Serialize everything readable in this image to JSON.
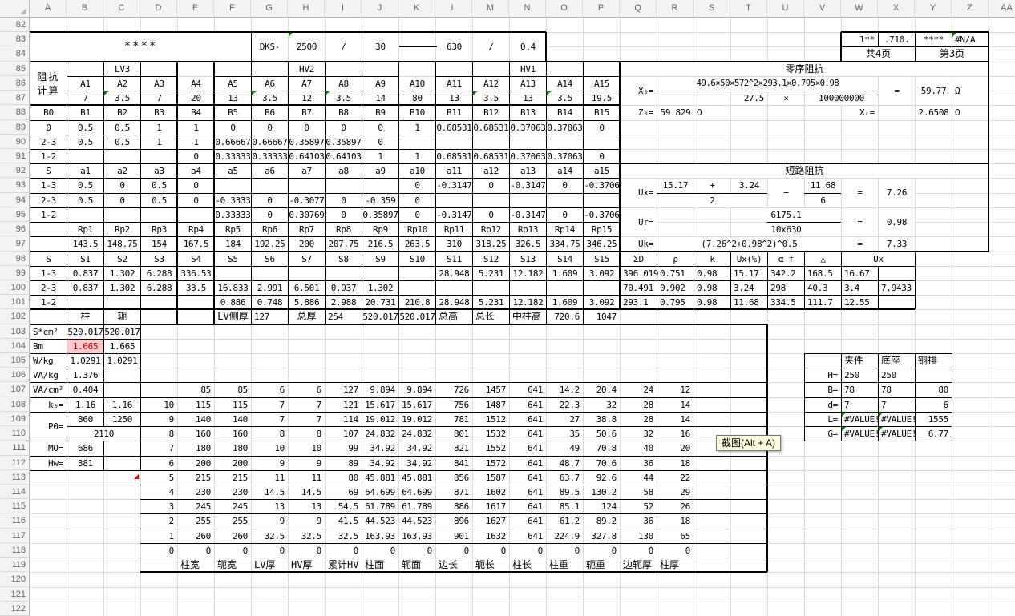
{
  "chrome": {
    "columns": [
      "A",
      "B",
      "C",
      "D",
      "E",
      "F",
      "G",
      "H",
      "I",
      "J",
      "K",
      "L",
      "M",
      "N",
      "O",
      "P",
      "Q",
      "R",
      "S",
      "T",
      "U",
      "V",
      "W",
      "X",
      "Y",
      "Z",
      "AA"
    ],
    "row_first": 82,
    "row_last": 123
  },
  "colors": {
    "gridline": "#dadada",
    "table_border": "#000000",
    "header_bg": "#f3f3f4",
    "header_text": "#5f6368",
    "warn_bg": "#ffc9ce",
    "warn_text": "#c00000",
    "comment_green": "#008000",
    "comment_red": "#d00000",
    "tooltip_bg": "#fffee1"
  },
  "tooltip": {
    "text": "截图(Alt + A)"
  },
  "markers": [
    {
      "r": 83,
      "c": "H",
      "type": "green"
    },
    {
      "r": 83,
      "c": "Z",
      "type": "green"
    },
    {
      "r": 87,
      "c": "C",
      "type": "green"
    },
    {
      "r": 87,
      "c": "G",
      "type": "green"
    },
    {
      "r": 87,
      "c": "I",
      "type": "green"
    },
    {
      "r": 87,
      "c": "M",
      "type": "green"
    },
    {
      "r": 87,
      "c": "O",
      "type": "green"
    },
    {
      "r": 109,
      "c": "W",
      "type": "green"
    },
    {
      "r": 109,
      "c": "X",
      "type": "green"
    },
    {
      "r": 110,
      "c": "W",
      "type": "green"
    },
    {
      "r": 110,
      "c": "X",
      "type": "green"
    },
    {
      "r": 113,
      "c": "C",
      "type": "red"
    }
  ],
  "cells": [
    {
      "r": 83,
      "c": "A",
      "cs": 6,
      "rs": 2,
      "t": "****",
      "k": "lg"
    },
    {
      "r": 83,
      "c": "G",
      "rs": 2,
      "t": "DKS-"
    },
    {
      "r": 83,
      "c": "H",
      "rs": 2,
      "t": "2500"
    },
    {
      "r": 83,
      "c": "I",
      "rs": 2,
      "t": "/"
    },
    {
      "r": 83,
      "c": "J",
      "rs": 2,
      "t": "30"
    },
    {
      "r": 83,
      "c": "L",
      "rs": 2,
      "t": "630"
    },
    {
      "r": 83,
      "c": "M",
      "rs": 2,
      "t": "/"
    },
    {
      "r": 83,
      "c": "N",
      "rs": 2,
      "t": "0.4"
    },
    {
      "r": 83,
      "c": "W",
      "t": "1**",
      "a": "r"
    },
    {
      "r": 83,
      "c": "X",
      "t": ".710."
    },
    {
      "r": 83,
      "c": "Y",
      "t": "****"
    },
    {
      "r": 83,
      "c": "Z",
      "t": "#N/A",
      "a": "l"
    },
    {
      "r": 84,
      "c": "W",
      "cs": 2,
      "t": "共4页",
      "k": "cjk"
    },
    {
      "r": 84,
      "c": "Y",
      "cs": 2,
      "t": "第3页",
      "k": "cjk"
    },
    {
      "r": 85,
      "c": "A",
      "rs": 3,
      "t": "阻抗\n计算",
      "k": "cjk2"
    },
    {
      "r": 85,
      "c": "B",
      "cs": 3,
      "t": "LV3"
    },
    {
      "r": 85,
      "c": "F",
      "cs": 5,
      "t": "HV2"
    },
    {
      "r": 85,
      "c": "L",
      "cs": 5,
      "t": "HV1"
    },
    {
      "r": 85,
      "c": "Q",
      "cs": 10,
      "t": "零序阻抗",
      "k": "cjk"
    },
    {
      "r": 86,
      "c": "B",
      "seq": [
        "A1",
        "A2",
        "A3",
        "A4",
        "A5",
        "A6",
        "A7",
        "A8",
        "A9",
        "A10",
        "A11",
        "A12",
        "A13",
        "A14",
        "A15"
      ]
    },
    {
      "r": 86,
      "c": "Q",
      "rs": 2,
      "t": "X₀=",
      "a": "r"
    },
    {
      "r": 86,
      "c": "R",
      "cs": 6,
      "t": "49.6×50×572^2×293.1×0.795×0.98",
      "k": "sm"
    },
    {
      "r": 86,
      "c": "X",
      "rs": 2,
      "t": "="
    },
    {
      "r": 86,
      "c": "Y",
      "rs": 2,
      "t": "59.77"
    },
    {
      "r": 86,
      "c": "Z",
      "rs": 2,
      "t": "Ω",
      "a": "l"
    },
    {
      "r": 87,
      "c": "B",
      "seq": [
        "7",
        "3.5",
        "7",
        "20",
        "13",
        "3.5",
        "12",
        "3.5",
        "14",
        "80",
        "13",
        "3.5",
        "13",
        "3.5",
        "19.5"
      ]
    },
    {
      "r": 87,
      "c": "T",
      "t": "27.5",
      "a": "r"
    },
    {
      "r": 87,
      "c": "U",
      "t": "×"
    },
    {
      "r": 87,
      "c": "V",
      "cs": 2,
      "t": "100000000"
    },
    {
      "r": 88,
      "c": "A",
      "seq": [
        "B0",
        "B1",
        "B2",
        "B3",
        "B4",
        "B5",
        "B6",
        "B7",
        "B8",
        "B9",
        "B10",
        "B11",
        "B12",
        "B13",
        "B14",
        "B15"
      ]
    },
    {
      "r": 88,
      "c": "Q",
      "t": "Z₀=",
      "a": "r"
    },
    {
      "r": 88,
      "c": "R",
      "t": "59.829"
    },
    {
      "r": 88,
      "c": "S",
      "t": "Ω",
      "a": "l"
    },
    {
      "r": 88,
      "c": "W",
      "t": "Xᵣ=",
      "a": "r"
    },
    {
      "r": 88,
      "c": "Y",
      "t": "2.6508"
    },
    {
      "r": 88,
      "c": "Z",
      "t": "Ω",
      "a": "l"
    },
    {
      "r": 89,
      "c": "A",
      "seq": [
        "0",
        "0.5",
        "0.5",
        "1",
        "1",
        "0",
        "0",
        "0",
        "0",
        "0",
        "1",
        "0.68531",
        "0.68531",
        "0.37063",
        "0.37063",
        "0"
      ]
    },
    {
      "r": 90,
      "c": "A",
      "seq": [
        "2-3",
        "0.5",
        "0.5",
        "1",
        "1",
        "0.66667",
        "0.66667",
        "0.35897",
        "0.35897",
        "0"
      ]
    },
    {
      "r": 91,
      "c": "A",
      "seq": [
        "1-2",
        null,
        null,
        null,
        "0",
        "0.33333",
        "0.33333",
        "0.64103",
        "0.64103",
        "1",
        "1",
        "0.68531",
        "0.68531",
        "0.37063",
        "0.37063",
        "0"
      ]
    },
    {
      "r": 92,
      "c": "A",
      "seq": [
        "S",
        "a1",
        "a2",
        "a3",
        "a4",
        "a5",
        "a6",
        "a7",
        "a8",
        "a9",
        "a10",
        "a11",
        "a12",
        "a13",
        "a14",
        "a15"
      ]
    },
    {
      "r": 92,
      "c": "Q",
      "cs": 10,
      "t": "短路阻抗",
      "k": "cjk"
    },
    {
      "r": 93,
      "c": "A",
      "seq": [
        "1-3",
        "0.5",
        "0",
        "0.5",
        "0",
        null,
        null,
        null,
        null,
        null,
        "0",
        "-0.3147",
        "0",
        "-0.3147",
        "0",
        "-0.3706"
      ]
    },
    {
      "r": 93,
      "c": "Q",
      "rs": 2,
      "t": "Ux=",
      "a": "r"
    },
    {
      "r": 93,
      "c": "R",
      "t": "15.17"
    },
    {
      "r": 93,
      "c": "S",
      "t": "+"
    },
    {
      "r": 93,
      "c": "T",
      "t": "3.24"
    },
    {
      "r": 93,
      "c": "U",
      "rs": 2,
      "t": "−"
    },
    {
      "r": 93,
      "c": "V",
      "t": "11.68"
    },
    {
      "r": 93,
      "c": "W",
      "rs": 2,
      "t": "="
    },
    {
      "r": 93,
      "c": "X",
      "rs": 2,
      "t": "7.26"
    },
    {
      "r": 94,
      "c": "A",
      "seq": [
        "2-3",
        "0.5",
        "0",
        "0.5",
        "0",
        "-0.3333",
        "0",
        "-0.3077",
        "0",
        "-0.359",
        "0"
      ]
    },
    {
      "r": 94,
      "c": "R",
      "cs": 3,
      "t": "2"
    },
    {
      "r": 94,
      "c": "V",
      "t": "6"
    },
    {
      "r": 95,
      "c": "A",
      "seq": [
        "1-2",
        null,
        null,
        null,
        null,
        "0.33333",
        "0",
        "0.30769",
        "0",
        "0.35897",
        "0",
        "-0.3147",
        "0",
        "-0.3147",
        "0",
        "-0.3706"
      ]
    },
    {
      "r": 95,
      "c": "Q",
      "rs": 2,
      "t": "Ur=",
      "a": "r"
    },
    {
      "r": 95,
      "c": "T",
      "cs": 3,
      "t": "6175.1"
    },
    {
      "r": 95,
      "c": "W",
      "rs": 2,
      "t": "="
    },
    {
      "r": 95,
      "c": "X",
      "rs": 2,
      "t": "0.98"
    },
    {
      "r": 96,
      "c": "B",
      "seq": [
        "Rp1",
        "Rp2",
        "Rp3",
        "Rp4",
        "Rp5",
        "Rp6",
        "Rp7",
        "Rp8",
        "Rp9",
        "Rp10",
        "Rp11",
        "Rp12",
        "Rp13",
        "Rp14",
        "Rp15"
      ]
    },
    {
      "r": 96,
      "c": "T",
      "cs": 3,
      "t": "10x630"
    },
    {
      "r": 97,
      "c": "B",
      "seq": [
        "143.5",
        "148.75",
        "154",
        "167.5",
        "184",
        "192.25",
        "200",
        "207.75",
        "216.5",
        "263.5",
        "310",
        "318.25",
        "326.5",
        "334.75",
        "346.25"
      ]
    },
    {
      "r": 97,
      "c": "Q",
      "t": "Uk=",
      "a": "r"
    },
    {
      "r": 97,
      "c": "R",
      "cs": 5,
      "t": "(7.26^2+0.98^2)^0.5"
    },
    {
      "r": 97,
      "c": "W",
      "t": "="
    },
    {
      "r": 97,
      "c": "X",
      "t": "7.33"
    },
    {
      "r": 98,
      "c": "A",
      "seq": [
        "S",
        "S1",
        "S2",
        "S3",
        "S4",
        "S5",
        "S6",
        "S7",
        "S8",
        "S9",
        "S10",
        "S11",
        "S12",
        "S13",
        "S14",
        "S15",
        "ΣD",
        "ρ",
        "k",
        "Ux(%)",
        "α f",
        "△"
      ]
    },
    {
      "r": 98,
      "c": "W",
      "cs": 2,
      "t": "Ux"
    },
    {
      "r": 99,
      "c": "A",
      "seq": [
        "1-3",
        "0.837",
        "1.302",
        "6.288",
        "336.53",
        null,
        null,
        null,
        null,
        null,
        null,
        "28.948",
        "5.231",
        "12.182",
        "1.609",
        "3.092"
      ]
    },
    {
      "r": 99,
      "c": "Q",
      "seq": [
        "396.019",
        "0.751",
        "0.98",
        "15.17",
        "342.2",
        "168.5",
        "16.67"
      ],
      "a": "l"
    },
    {
      "r": 100,
      "c": "A",
      "seq": [
        "2-3",
        "0.837",
        "1.302",
        "6.288",
        "33.5",
        "16.833",
        "2.991",
        "6.501",
        "0.937",
        "1.302"
      ]
    },
    {
      "r": 100,
      "c": "Q",
      "seq": [
        "70.491",
        "0.902",
        "0.98",
        "3.24",
        "298",
        "40.3",
        "3.4",
        "7.9433"
      ],
      "a": "l"
    },
    {
      "r": 101,
      "c": "A",
      "seq": [
        "1-2",
        null,
        null,
        null,
        null,
        "0.886",
        "0.748",
        "5.886",
        "2.988",
        "20.731",
        "210.8",
        "28.948",
        "5.231",
        "12.182",
        "1.609",
        "3.092"
      ]
    },
    {
      "r": 101,
      "c": "Q",
      "seq": [
        "293.1",
        "0.795",
        "0.98",
        "11.68",
        "334.5",
        "111.7",
        "12.55"
      ],
      "a": "l"
    },
    {
      "r": 102,
      "c": "B",
      "t": "柱",
      "k": "cjk"
    },
    {
      "r": 102,
      "c": "C",
      "t": "轭",
      "k": "cjk"
    },
    {
      "r": 102,
      "c": "F",
      "t": "LV侧厚",
      "k": "cjk"
    },
    {
      "r": 102,
      "c": "G",
      "t": "127",
      "a": "l"
    },
    {
      "r": 102,
      "c": "H",
      "t": "总厚",
      "k": "cjk"
    },
    {
      "r": 102,
      "c": "I",
      "t": "254",
      "a": "l"
    },
    {
      "r": 102,
      "c": "J",
      "t": "520.017"
    },
    {
      "r": 102,
      "c": "K",
      "t": "520.017"
    },
    {
      "r": 102,
      "c": "L",
      "t": "总高",
      "k": "cjk",
      "a": "l"
    },
    {
      "r": 102,
      "c": "M",
      "t": "总长",
      "k": "cjk",
      "a": "l"
    },
    {
      "r": 102,
      "c": "N",
      "t": "中柱高",
      "k": "cjk",
      "a": "l"
    },
    {
      "r": 102,
      "c": "O",
      "t": "720.6",
      "a": "r"
    },
    {
      "r": 102,
      "c": "P",
      "t": "1047",
      "a": "r"
    },
    {
      "r": 103,
      "c": "A",
      "t": "S*cm²",
      "a": "l"
    },
    {
      "r": 103,
      "c": "B",
      "t": "520.017"
    },
    {
      "r": 103,
      "c": "C",
      "t": "520.017"
    },
    {
      "r": 104,
      "c": "A",
      "t": "Bm",
      "a": "l"
    },
    {
      "r": 104,
      "c": "B",
      "t": "1.665",
      "k": "warn"
    },
    {
      "r": 104,
      "c": "C",
      "t": "1.665"
    },
    {
      "r": 105,
      "c": "A",
      "t": "W/kg",
      "a": "l"
    },
    {
      "r": 105,
      "c": "B",
      "t": "1.0291"
    },
    {
      "r": 105,
      "c": "C",
      "t": "1.0291"
    },
    {
      "r": 105,
      "c": "W",
      "t": "夹件",
      "k": "cjk",
      "a": "l"
    },
    {
      "r": 105,
      "c": "X",
      "t": "底座",
      "k": "cjk",
      "a": "l"
    },
    {
      "r": 105,
      "c": "Y",
      "t": "铜排",
      "k": "cjk",
      "a": "l"
    },
    {
      "r": 106,
      "c": "A",
      "t": "VA/kg",
      "a": "l"
    },
    {
      "r": 106,
      "c": "B",
      "t": "1.376"
    },
    {
      "r": 106,
      "c": "V",
      "t": "H=",
      "a": "r"
    },
    {
      "r": 106,
      "c": "W",
      "t": "250",
      "a": "l"
    },
    {
      "r": 106,
      "c": "X",
      "t": "250",
      "a": "l"
    },
    {
      "r": 107,
      "c": "A",
      "t": "VA/cm²",
      "a": "l"
    },
    {
      "r": 107,
      "c": "B",
      "t": "0.404"
    },
    {
      "r": 107,
      "c": "E",
      "seq": [
        "85",
        "85",
        "6",
        "6",
        "127",
        "9.894",
        "9.894",
        "726",
        "1457",
        "641",
        "14.2",
        "20.4",
        "24",
        "12"
      ],
      "a": "r"
    },
    {
      "r": 107,
      "c": "V",
      "t": "B=",
      "a": "r"
    },
    {
      "r": 107,
      "c": "W",
      "t": "78",
      "a": "l"
    },
    {
      "r": 107,
      "c": "X",
      "t": "78",
      "a": "l"
    },
    {
      "r": 107,
      "c": "Y",
      "t": "80",
      "a": "r"
    },
    {
      "r": 108,
      "c": "A",
      "t": "k₀=",
      "a": "r"
    },
    {
      "r": 108,
      "c": "B",
      "t": "1.16"
    },
    {
      "r": 108,
      "c": "C",
      "t": "1.16"
    },
    {
      "r": 108,
      "c": "D",
      "seq": [
        "10",
        "115",
        "115",
        "7",
        "7",
        "121",
        "15.617",
        "15.617",
        "756",
        "1487",
        "641",
        "22.3",
        "32",
        "28",
        "14"
      ],
      "a": "r"
    },
    {
      "r": 108,
      "c": "V",
      "t": "d=",
      "a": "r"
    },
    {
      "r": 108,
      "c": "W",
      "t": "7",
      "a": "l"
    },
    {
      "r": 108,
      "c": "X",
      "t": "7",
      "a": "l"
    },
    {
      "r": 108,
      "c": "Y",
      "t": "6",
      "a": "r"
    },
    {
      "r": 109,
      "c": "A",
      "rs": 2,
      "t": "P0=",
      "a": "r"
    },
    {
      "r": 109,
      "c": "B",
      "t": "860"
    },
    {
      "r": 109,
      "c": "C",
      "t": "1250"
    },
    {
      "r": 109,
      "c": "D",
      "seq": [
        "9",
        "140",
        "140",
        "7",
        "7",
        "114",
        "19.012",
        "19.012",
        "781",
        "1512",
        "641",
        "27",
        "38.8",
        "28",
        "14"
      ],
      "a": "r"
    },
    {
      "r": 109,
      "c": "V",
      "t": "L=",
      "a": "r"
    },
    {
      "r": 109,
      "c": "W",
      "t": "#VALUE!",
      "a": "l"
    },
    {
      "r": 109,
      "c": "X",
      "t": "#VALUE!",
      "a": "l"
    },
    {
      "r": 109,
      "c": "Y",
      "t": "1555",
      "a": "r"
    },
    {
      "r": 110,
      "c": "B",
      "cs": 2,
      "t": "2110"
    },
    {
      "r": 110,
      "c": "D",
      "seq": [
        "8",
        "160",
        "160",
        "8",
        "8",
        "107",
        "24.832",
        "24.832",
        "801",
        "1532",
        "641",
        "35",
        "50.6",
        "32",
        "16"
      ],
      "a": "r"
    },
    {
      "r": 110,
      "c": "V",
      "t": "G=",
      "a": "r"
    },
    {
      "r": 110,
      "c": "W",
      "t": "#VALUE!",
      "a": "l"
    },
    {
      "r": 110,
      "c": "X",
      "t": "#VALUE!",
      "a": "l"
    },
    {
      "r": 110,
      "c": "Y",
      "t": "6.77",
      "a": "r"
    },
    {
      "r": 111,
      "c": "A",
      "t": "MO=",
      "a": "r"
    },
    {
      "r": 111,
      "c": "B",
      "t": "686"
    },
    {
      "r": 111,
      "c": "D",
      "seq": [
        "7",
        "180",
        "180",
        "10",
        "10",
        "99",
        "34.92",
        "34.92",
        "821",
        "1552",
        "641",
        "49",
        "70.8",
        "40",
        "20"
      ],
      "a": "r"
    },
    {
      "r": 112,
      "c": "A",
      "t": "Hw=",
      "a": "r"
    },
    {
      "r": 112,
      "c": "B",
      "t": "381"
    },
    {
      "r": 112,
      "c": "D",
      "seq": [
        "6",
        "200",
        "200",
        "9",
        "9",
        "89",
        "34.92",
        "34.92",
        "841",
        "1572",
        "641",
        "48.7",
        "70.6",
        "36",
        "18"
      ],
      "a": "r"
    },
    {
      "r": 113,
      "c": "D",
      "seq": [
        "5",
        "215",
        "215",
        "11",
        "11",
        "80",
        "45.881",
        "45.881",
        "856",
        "1587",
        "641",
        "63.7",
        "92.6",
        "44",
        "22"
      ],
      "a": "r"
    },
    {
      "r": 114,
      "c": "D",
      "seq": [
        "4",
        "230",
        "230",
        "14.5",
        "14.5",
        "69",
        "64.699",
        "64.699",
        "871",
        "1602",
        "641",
        "89.5",
        "130.2",
        "58",
        "29"
      ],
      "a": "r"
    },
    {
      "r": 115,
      "c": "D",
      "seq": [
        "3",
        "245",
        "245",
        "13",
        "13",
        "54.5",
        "61.789",
        "61.789",
        "886",
        "1617",
        "641",
        "85.1",
        "124",
        "52",
        "26"
      ],
      "a": "r"
    },
    {
      "r": 116,
      "c": "D",
      "seq": [
        "2",
        "255",
        "255",
        "9",
        "9",
        "41.5",
        "44.523",
        "44.523",
        "896",
        "1627",
        "641",
        "61.2",
        "89.2",
        "36",
        "18"
      ],
      "a": "r"
    },
    {
      "r": 117,
      "c": "D",
      "seq": [
        "1",
        "260",
        "260",
        "32.5",
        "32.5",
        "32.5",
        "163.93",
        "163.93",
        "901",
        "1632",
        "641",
        "224.9",
        "327.8",
        "130",
        "65"
      ],
      "a": "r"
    },
    {
      "r": 118,
      "c": "D",
      "seq": [
        "0",
        "0",
        "0",
        "0",
        "0",
        "0",
        "0",
        "0",
        "0",
        "0",
        "0",
        "0",
        "0",
        "0",
        "0"
      ],
      "a": "r"
    },
    {
      "r": 119,
      "c": "E",
      "seq": [
        "柱宽",
        "轭宽",
        "LV厚",
        "HV厚",
        "累计HV",
        "柱面",
        "轭面",
        "边长",
        "轭长",
        "柱长",
        "柱重",
        "轭重",
        "边轭厚",
        "柱厚"
      ],
      "a": "l",
      "k": "cjk"
    }
  ]
}
